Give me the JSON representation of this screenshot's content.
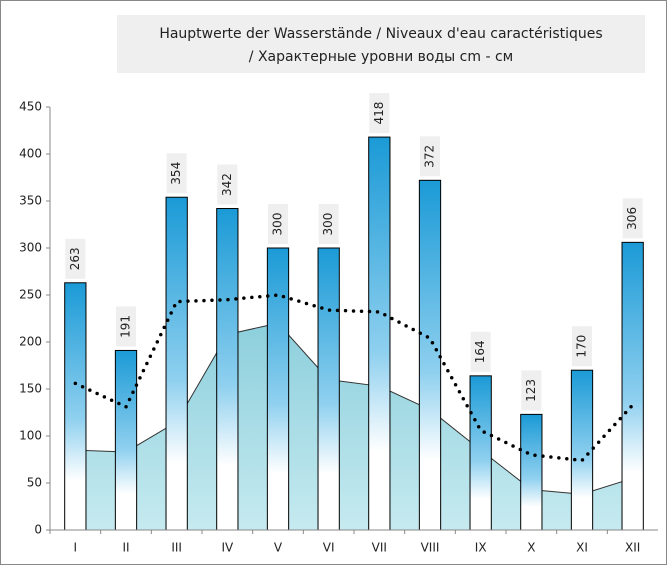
{
  "chart_data": {
    "type": "bar",
    "title": [
      "Hauptwerte der Wasserstände / Niveaux d'eau caractéristiques",
      "/ Характерные уровни воды cm - см"
    ],
    "categories": [
      "I",
      "II",
      "III",
      "IV",
      "V",
      "VI",
      "VII",
      "VIII",
      "IX",
      "X",
      "XI",
      "XII"
    ],
    "series": [
      {
        "type": "area",
        "color": "#a6dbe4",
        "values": [
          85,
          83,
          115,
          208,
          220,
          160,
          153,
          128,
          85,
          43,
          38,
          55
        ]
      },
      {
        "type": "bar",
        "color": "#1b9ad6",
        "values": [
          263,
          191,
          354,
          342,
          300,
          300,
          418,
          372,
          164,
          123,
          170,
          306
        ]
      },
      {
        "type": "line",
        "color": "#000000",
        "values": [
          156,
          131,
          243,
          245,
          250,
          234,
          232,
          204,
          106,
          80,
          74,
          133
        ]
      }
    ],
    "ylim": [
      0,
      450
    ],
    "yticks": [
      0,
      50,
      100,
      150,
      200,
      250,
      300,
      350,
      400,
      450
    ],
    "grid": false
  }
}
